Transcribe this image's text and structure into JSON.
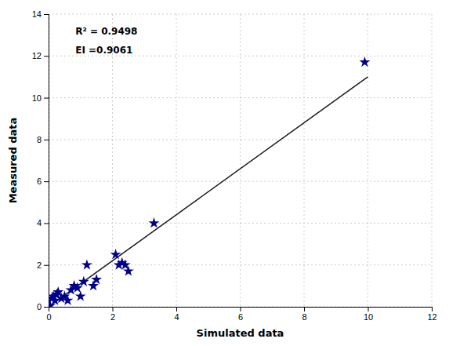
{
  "chart_data": {
    "type": "scatter",
    "xlabel": "Simulated data",
    "ylabel": "Measured data",
    "annotations": [
      "R² = 0.9498",
      "EI =0.9061"
    ],
    "series": [
      {
        "type": "scatter",
        "marker": "star",
        "color": "#00008B",
        "x": [
          0.05,
          0.1,
          0.15,
          0.2,
          0.25,
          0.3,
          0.4,
          0.5,
          0.6,
          0.7,
          0.8,
          0.9,
          1.0,
          1.1,
          1.2,
          1.4,
          1.5,
          2.1,
          2.2,
          2.3,
          2.4,
          2.5,
          3.3,
          9.9
        ],
        "values": [
          0.05,
          0.4,
          0.5,
          0.3,
          0.6,
          0.7,
          0.4,
          0.5,
          0.3,
          0.8,
          1.0,
          0.9,
          0.5,
          1.2,
          2.0,
          1.0,
          1.3,
          2.5,
          2.0,
          2.1,
          2.0,
          1.7,
          4.0,
          11.7
        ]
      },
      {
        "type": "line",
        "color": "#1a1a1a",
        "x": [
          0,
          10
        ],
        "values": [
          0,
          11.0
        ]
      }
    ],
    "xlim": [
      0,
      12
    ],
    "ylim": [
      0,
      14
    ],
    "xticks": [
      0,
      2,
      4,
      6,
      8,
      10,
      12
    ],
    "yticks": [
      0,
      2,
      4,
      6,
      8,
      10,
      12,
      14
    ],
    "grid": true
  }
}
